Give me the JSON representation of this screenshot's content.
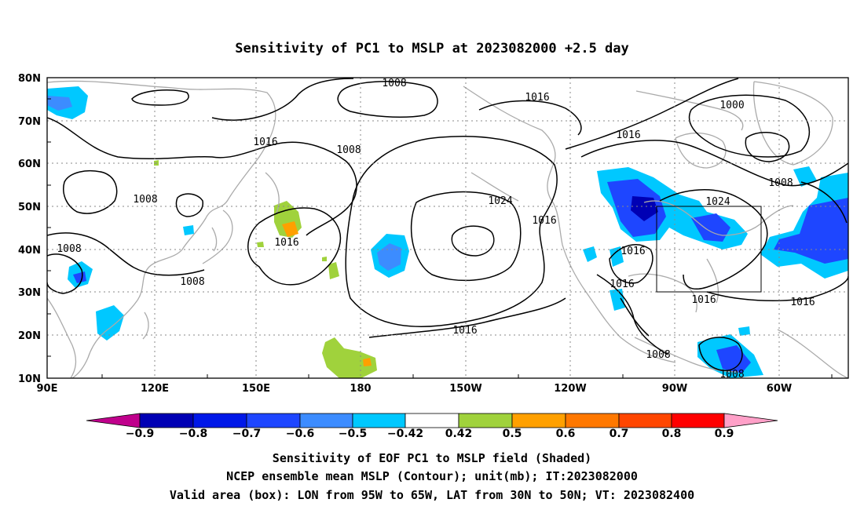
{
  "title": "Sensitivity of PC1 to MSLP at 2023082000 +2.5 day",
  "map": {
    "lat_ticks": [
      "80N",
      "70N",
      "60N",
      "50N",
      "40N",
      "30N",
      "20N",
      "10N"
    ],
    "lon_ticks": [
      "90E",
      "120E",
      "150E",
      "180",
      "150W",
      "120W",
      "90W",
      "60W"
    ],
    "extent": {
      "lon_min": 90,
      "lon_max": 310,
      "lat_min": 10,
      "lat_max": 80
    },
    "valid_box": {
      "lon_from": "95W",
      "lon_to": "65W",
      "lat_from": "30N",
      "lat_to": "50N"
    },
    "contour_labels": [
      "1008",
      "1016",
      "1008",
      "1008",
      "1008",
      "1016",
      "1008",
      "1016",
      "1024",
      "1016",
      "1016",
      "1000",
      "1016",
      "1008",
      "1024",
      "1016",
      "1016",
      "1016",
      "1016",
      "1008",
      "1008",
      "1016"
    ],
    "colors": {
      "neg_09": "#c0008c",
      "neg_08": "#0000b4",
      "neg_07": "#0018e8",
      "neg_06": "#1e46ff",
      "neg_05": "#3c8cff",
      "neg_042": "#00c8ff",
      "pos_042": "#a0d23c",
      "pos_05": "#ffa000",
      "pos_06": "#ff7800",
      "pos_07": "#ff4600",
      "pos_08": "#ff0000",
      "pos_09": "#ffa0c8",
      "coast": "#aaaaaa",
      "contour": "#000000"
    }
  },
  "colorbar": {
    "labels": [
      "−0.9",
      "−0.8",
      "−0.7",
      "−0.6",
      "−0.5",
      "−0.42",
      "0.42",
      "0.5",
      "0.6",
      "0.7",
      "0.8",
      "0.9"
    ]
  },
  "caption": {
    "line1": "Sensitivity of EOF PC1 to MSLP field (Shaded)",
    "line2": "NCEP ensemble mean MSLP (Contour); unit(mb); IT:2023082000",
    "line3": "Valid area (box): LON from 95W to 65W, LAT from 30N to 50N; VT: 2023082400"
  }
}
